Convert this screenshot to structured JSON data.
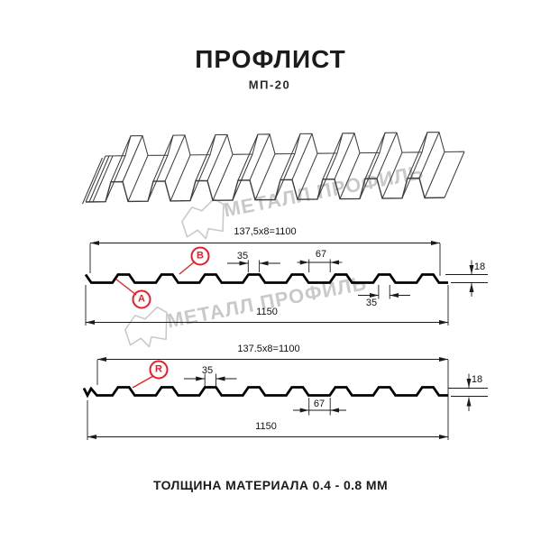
{
  "title": "ПРОФЛИСТ",
  "subtitle": "МП-20",
  "footer": "ТОЛЩИНА МАТЕРИАЛА 0.4 - 0.8 ММ",
  "watermark": {
    "text": "МЕТАЛЛ ПРОФИЛЬ",
    "logo": "metall-profil-logo"
  },
  "colors": {
    "accent_red": "#ed1c24",
    "line": "#1a1a1a",
    "profile": "#000000",
    "watermark": "#c9c9c9",
    "sheet_3d": "#3d3d3d"
  },
  "sections": [
    {
      "view": "A-B",
      "dim_top": "137,5x8=1100",
      "dim_rib_top": "35",
      "dim_trough": "67",
      "dim_height": "18",
      "dim_rib_bottom": "35",
      "dim_full_width": "1150",
      "labels": [
        "A",
        "B"
      ]
    },
    {
      "view": "R",
      "dim_top": "137.5x8=1100",
      "dim_rib_top": "35",
      "dim_trough": "67",
      "dim_height": "18",
      "dim_full_width": "1150",
      "labels": [
        "R"
      ]
    }
  ]
}
